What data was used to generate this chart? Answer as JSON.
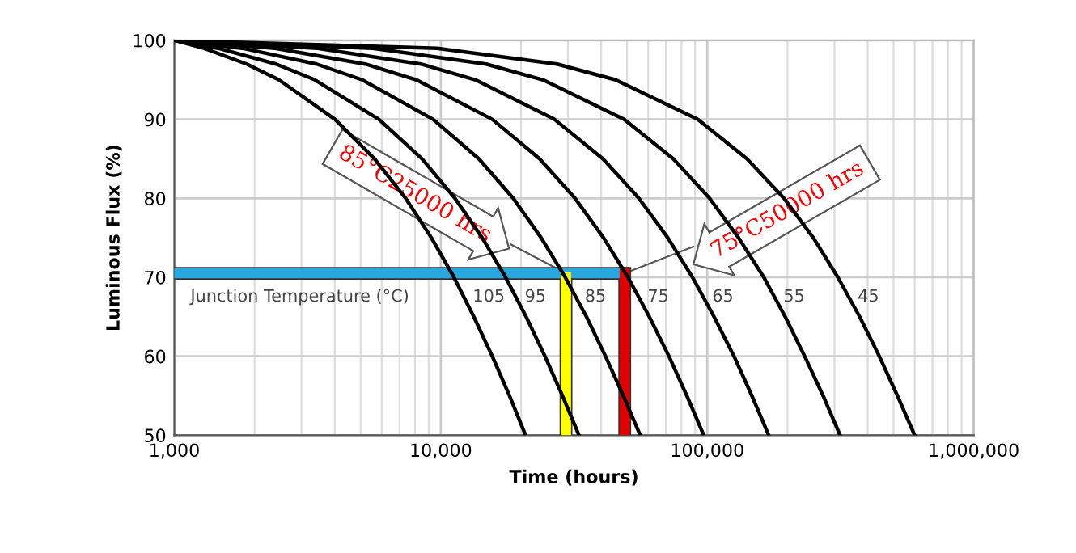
{
  "chart_data": {
    "type": "line",
    "xlabel": "Time (hours)",
    "ylabel": "Luminous Flux (%)",
    "log": "x",
    "xlim": [
      1000,
      1000000
    ],
    "ylim": [
      50,
      100
    ],
    "xticks": [
      {
        "value": 1000,
        "label": "1,000"
      },
      {
        "value": 10000,
        "label": "10,000"
      },
      {
        "value": 100000,
        "label": "100,000"
      },
      {
        "value": 1000000,
        "label": "1,000,000"
      }
    ],
    "yticks": [
      50,
      60,
      70,
      80,
      90,
      100
    ],
    "grid": true,
    "legend": false,
    "marker": "none",
    "line_style": "solid",
    "series": [
      {
        "color": "#000000",
        "x": [
          1000,
          1290,
          1870,
          2470,
          4010,
          5640,
          7380,
          9220,
          11200,
          13300,
          15600,
          18100,
          20800
        ],
        "values": [
          100,
          99,
          97,
          95,
          90,
          85,
          80,
          75,
          70,
          65,
          60,
          55,
          50
        ]
      },
      {
        "color": "#000000",
        "x": [
          1000,
          1460,
          2410,
          3370,
          5860,
          8500,
          11300,
          14300,
          17500,
          20900,
          24600,
          28600,
          33000
        ],
        "values": [
          100,
          99,
          97,
          95,
          90,
          85,
          80,
          75,
          70,
          65,
          60,
          55,
          50
        ]
      },
      {
        "color": "#000000",
        "x": [
          1000,
          1800,
          3420,
          5070,
          9360,
          13900,
          18700,
          23800,
          29300,
          35200,
          41500,
          48400,
          56000
        ],
        "values": [
          100,
          99,
          97,
          95,
          90,
          85,
          80,
          75,
          70,
          65,
          60,
          55,
          50
        ]
      },
      {
        "color": "#000000",
        "x": [
          1000,
          2390,
          5210,
          8100,
          15600,
          23500,
          31900,
          40800,
          50400,
          60600,
          71800,
          83800,
          97000
        ],
        "values": [
          100,
          99,
          97,
          95,
          90,
          85,
          80,
          75,
          70,
          65,
          60,
          55,
          50
        ]
      },
      {
        "color": "#000000",
        "x": [
          1000,
          3450,
          8420,
          13500,
          26700,
          40600,
          55400,
          71100,
          88000,
          106000,
          126000,
          147000,
          170000
        ],
        "values": [
          100,
          99,
          97,
          95,
          90,
          85,
          80,
          75,
          70,
          65,
          60,
          55,
          50
        ]
      },
      {
        "color": "#000000",
        "x": [
          1000,
          5550,
          14800,
          24200,
          48700,
          74600,
          102000,
          131000,
          163000,
          196000,
          232000,
          272000,
          315000
        ],
        "values": [
          100,
          99,
          97,
          95,
          90,
          85,
          80,
          75,
          70,
          65,
          60,
          55,
          50
        ]
      },
      {
        "color": "#000000",
        "x": [
          1000,
          9690,
          27300,
          45300,
          92000,
          141000,
          194000,
          250000,
          309000,
          373000,
          442000,
          517000,
          600000
        ],
        "values": [
          100,
          99,
          97,
          95,
          90,
          85,
          80,
          75,
          70,
          65,
          60,
          55,
          50
        ]
      },
      {
        "color": "#29a8e0",
        "x": [
          1000,
          48000
        ],
        "values": [
          70.5,
          70.5
        ]
      },
      {
        "color": "#ffff00",
        "x": [
          29500,
          29500
        ],
        "values": [
          50,
          70
        ]
      },
      {
        "color": "#e00000",
        "x": [
          49000,
          49000
        ],
        "values": [
          50,
          70.5
        ]
      }
    ],
    "annotations": [
      "Junction Temperature (°C)",
      "105",
      "95",
      "85",
      "75",
      "65",
      "55",
      "45",
      {
        "text": "85°C25000 hrs",
        "x": 29500,
        "y": 70.5
      },
      {
        "text": "75°C50000 hrs",
        "x": 49000,
        "y": 70.5
      }
    ]
  }
}
